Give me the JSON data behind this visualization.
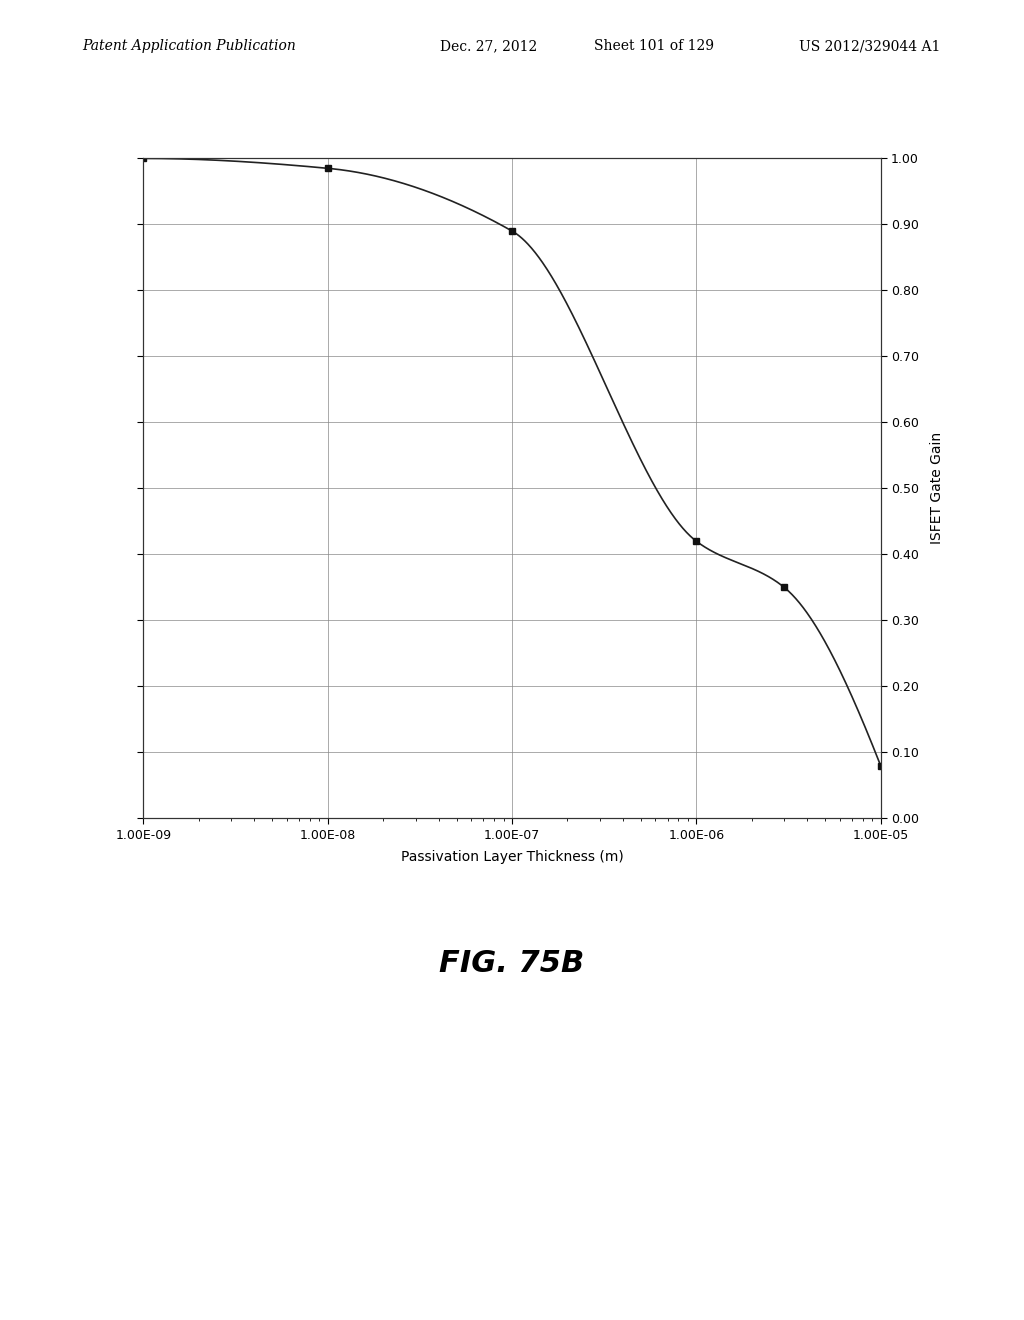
{
  "title_header": "Patent Application Publication",
  "title_date": "Dec. 27, 2012",
  "title_sheet": "Sheet 101 of 129",
  "title_patent": "US 2012/329044 A1",
  "fig_label": "FIG. 75B",
  "xlabel": "Passivation Layer Thickness (m)",
  "ylabel": "ISFET Gate Gain",
  "x_ticks": [
    1e-09,
    1e-08,
    1e-07,
    1e-06,
    1e-05
  ],
  "x_tick_labels": [
    "1.00E-09",
    "1.00E-08",
    "1.00E-07",
    "1.00E-06",
    "1.00E-05"
  ],
  "y_ticks": [
    0.0,
    0.1,
    0.2,
    0.3,
    0.4,
    0.5,
    0.6,
    0.7,
    0.8,
    0.9,
    1.0
  ],
  "xlim_log": [
    -9,
    -5
  ],
  "ylim": [
    0.0,
    1.0
  ],
  "data_points_x": [
    1e-09,
    1e-08,
    1e-07,
    1e-06,
    3e-06,
    1e-05
  ],
  "data_points_y": [
    1.0,
    0.985,
    0.89,
    0.42,
    0.35,
    0.08
  ],
  "line_color": "#222222",
  "marker_color": "#111111",
  "background_color": "#ffffff",
  "grid_color": "#888888",
  "header_text_color": "#000000",
  "fig_label_fontsize": 22,
  "axis_label_fontsize": 10,
  "tick_label_fontsize": 9,
  "header_fontsize": 10
}
